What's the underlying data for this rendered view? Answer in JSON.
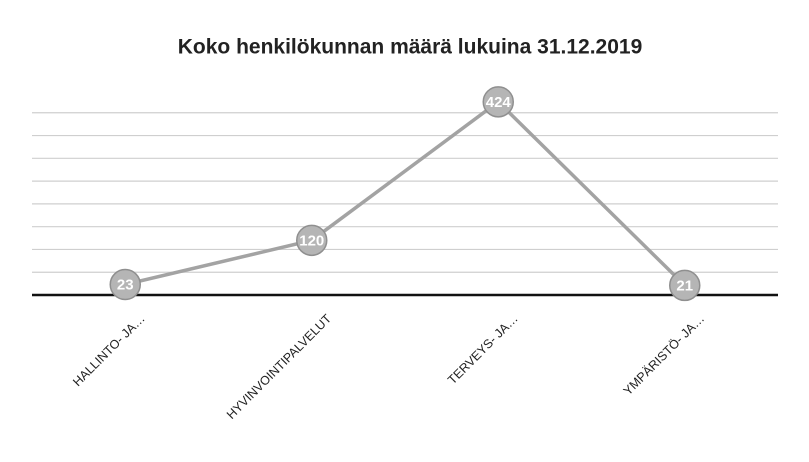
{
  "chart_data": {
    "type": "line",
    "title": "Koko henkilökunnan määrä lukuina 31.12.2019",
    "categories": [
      "HALLINTO- JA…",
      "HYVINVOINTIPALVELUT",
      "TERVEYS- JA…",
      "YMPÄRISTÖ- JA…"
    ],
    "values": [
      23,
      120,
      424,
      21
    ],
    "color": "#a3a3a3",
    "ylim": [
      0,
      450
    ],
    "yticks": [
      0,
      50,
      100,
      150,
      200,
      250,
      300,
      350,
      400
    ],
    "grid": true
  }
}
